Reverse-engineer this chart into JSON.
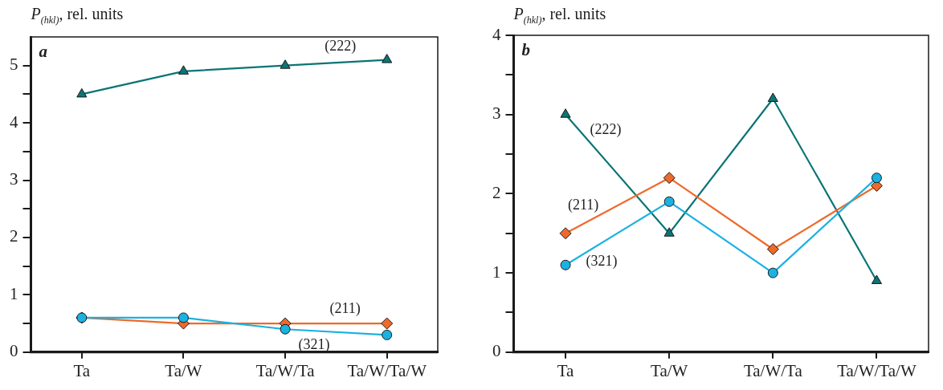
{
  "chart_data": [
    {
      "type": "line",
      "title": "a",
      "ylabel": "P$_{(hkl)}$, rel. units",
      "categories": [
        "Ta",
        "Ta/W",
        "Ta/W/Ta",
        "Ta/W/Ta/W"
      ],
      "series": [
        {
          "name": "(222)",
          "color": "#0b7475",
          "marker": "triangle",
          "values": [
            4.5,
            4.9,
            5.0,
            5.1
          ]
        },
        {
          "name": "(211)",
          "color": "#ee6a2b",
          "marker": "diamond",
          "values": [
            0.6,
            0.5,
            0.5,
            0.5
          ]
        },
        {
          "name": "(321)",
          "color": "#1bb1e1",
          "marker": "circle",
          "values": [
            0.6,
            0.6,
            0.4,
            0.3
          ]
        }
      ],
      "ylim": [
        0,
        5.5
      ],
      "yticks": [
        0,
        {
          "value": 0.5,
          "label": null
        },
        1,
        {
          "value": 1.5,
          "label": null
        },
        2,
        {
          "value": 2.5,
          "label": null
        },
        3,
        {
          "value": 3.5,
          "label": null
        },
        4,
        {
          "value": 4.5,
          "label": null
        },
        5
      ],
      "grid": false,
      "legend": false,
      "line_style": "solid"
    },
    {
      "type": "line",
      "title": "b",
      "ylabel": "P$_{(hkl)}$, rel. units",
      "categories": [
        "Ta",
        "Ta/W",
        "Ta/W/Ta",
        "Ta/W/Ta/W"
      ],
      "series": [
        {
          "name": "(222)",
          "color": "#0b7475",
          "marker": "triangle",
          "values": [
            3.0,
            1.5,
            3.2,
            0.9
          ]
        },
        {
          "name": "(211)",
          "color": "#ee6a2b",
          "marker": "diamond",
          "values": [
            1.5,
            2.2,
            1.3,
            2.1
          ]
        },
        {
          "name": "(321)",
          "color": "#1bb1e1",
          "marker": "circle",
          "values": [
            1.1,
            1.9,
            1.0,
            2.2
          ]
        }
      ],
      "ylim": [
        0,
        4
      ],
      "yticks": [
        0,
        {
          "value": 0.5,
          "label": null
        },
        1,
        {
          "value": 1.5,
          "label": null
        },
        2,
        {
          "value": 2.5,
          "label": null
        },
        3,
        {
          "value": 3.5,
          "label": null
        },
        4
      ],
      "grid": false,
      "legend": false,
      "line_style": "solid"
    }
  ]
}
